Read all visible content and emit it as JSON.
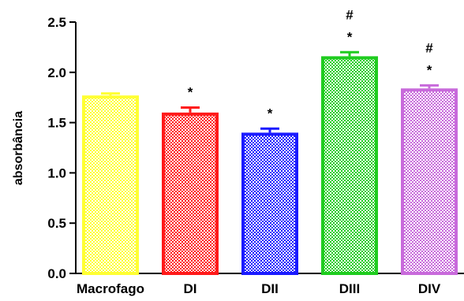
{
  "chart_data": {
    "type": "bar",
    "title": "",
    "xlabel": "",
    "ylabel": "absorbância",
    "ylim": [
      0,
      2.5
    ],
    "yticks": [
      "0.0",
      "0.5",
      "1.0",
      "1.5",
      "2.0",
      "2.5"
    ],
    "categories": [
      "Macrofago",
      "DI",
      "DII",
      "DIII",
      "DIV"
    ],
    "values": [
      1.77,
      1.6,
      1.4,
      2.16,
      1.84
    ],
    "errors": [
      0.02,
      0.05,
      0.04,
      0.04,
      0.03
    ],
    "colors": [
      "#ffff33",
      "#ff1a1a",
      "#1a1aff",
      "#1fcc1f",
      "#c86adb"
    ],
    "annotations": [
      [],
      [
        "*"
      ],
      [
        "*"
      ],
      [
        "*",
        "#"
      ],
      [
        "*",
        "#"
      ]
    ],
    "fill_pattern": "checkered",
    "grid": false,
    "legend": "none"
  }
}
